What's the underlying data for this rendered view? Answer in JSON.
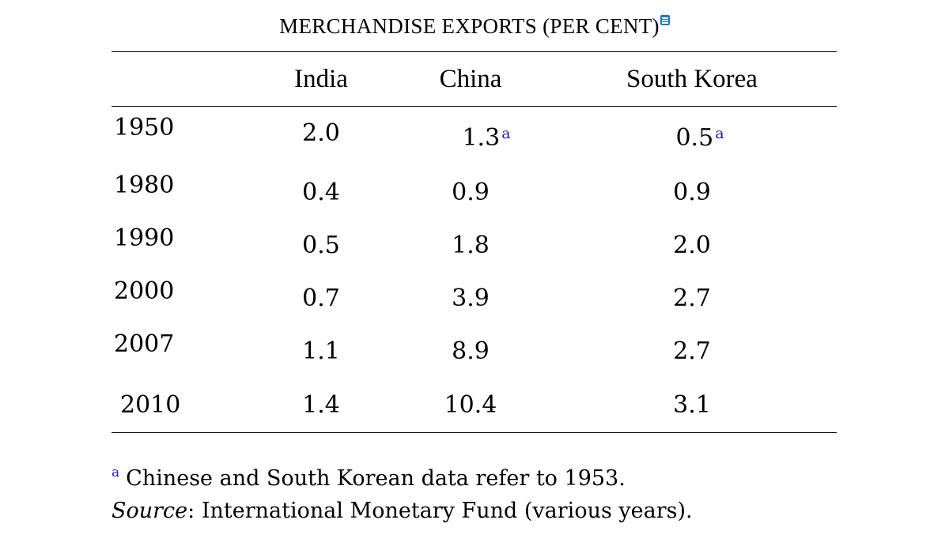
{
  "title": "MERCHANDISE EXPORTS (PER CENT)",
  "columns": [
    "India",
    "China",
    "South Korea"
  ],
  "rows": [
    {
      "year": "1950",
      "india": "2.0",
      "china": "1.3",
      "china_note": "a",
      "korea": "0.5",
      "korea_note": "a"
    },
    {
      "year": "1980",
      "india": "0.4",
      "china": "0.9",
      "korea": "0.9"
    },
    {
      "year": "1990",
      "india": "0.5",
      "china": "1.8",
      "korea": "2.0"
    },
    {
      "year": "2000",
      "india": "0.7",
      "china": "3.9",
      "korea": "2.7"
    },
    {
      "year": "2007",
      "india": "1.1",
      "china": "8.9",
      "korea": "2.7"
    },
    {
      "year": "2010",
      "india": "1.4",
      "china": "10.4",
      "korea": "3.1"
    }
  ],
  "footnote": {
    "marker": "a",
    "text": "Chinese and South Korean data refer to 1953."
  },
  "source": {
    "label": "Source",
    "text": ": International Monetary Fund (various years)."
  },
  "icons": {
    "title_note": "note-icon"
  },
  "colors": {
    "footnote_marker": "#1a1acc",
    "note_icon": "#1a73d8"
  }
}
